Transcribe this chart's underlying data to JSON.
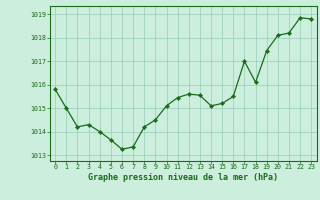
{
  "x": [
    0,
    1,
    2,
    3,
    4,
    5,
    6,
    7,
    8,
    9,
    10,
    11,
    12,
    13,
    14,
    15,
    16,
    17,
    18,
    19,
    20,
    21,
    22,
    23
  ],
  "y": [
    1015.8,
    1015.0,
    1014.2,
    1014.3,
    1014.0,
    1013.65,
    1013.25,
    1013.35,
    1014.2,
    1014.5,
    1015.1,
    1015.45,
    1015.6,
    1015.55,
    1015.1,
    1015.2,
    1015.5,
    1017.0,
    1016.1,
    1017.45,
    1018.1,
    1018.2,
    1018.85,
    1018.8
  ],
  "ylim": [
    1012.75,
    1019.35
  ],
  "yticks": [
    1013,
    1014,
    1015,
    1016,
    1017,
    1018,
    1019
  ],
  "xticks": [
    0,
    1,
    2,
    3,
    4,
    5,
    6,
    7,
    8,
    9,
    10,
    11,
    12,
    13,
    14,
    15,
    16,
    17,
    18,
    19,
    20,
    21,
    22,
    23
  ],
  "xlabel": "Graphe pression niveau de la mer (hPa)",
  "line_color": "#1a6b1a",
  "marker_color": "#1a6b1a",
  "bg_color": "#cceedd",
  "grid_color": "#99ccbb",
  "xlabel_color": "#1a6b1a",
  "tick_color": "#1a6b1a",
  "border_color": "#1a6b1a"
}
